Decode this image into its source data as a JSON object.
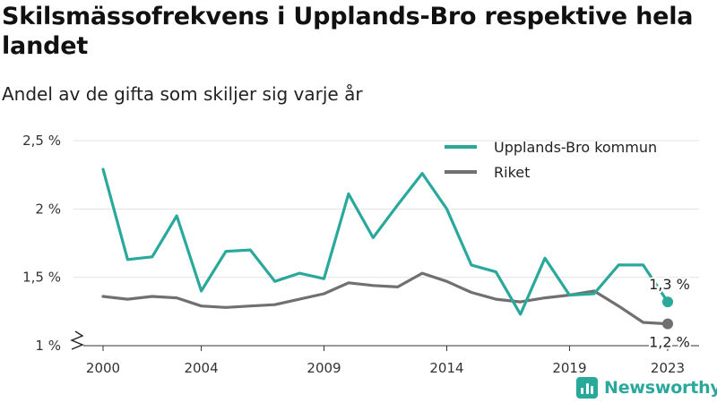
{
  "chart_data": {
    "type": "line",
    "title": "Skilsmässofrekvens i Upplands-Bro respektive hela landet",
    "subtitle": "Andel av de gifta som skiljer sig varje år",
    "x": [
      2000,
      2001,
      2002,
      2003,
      2004,
      2005,
      2006,
      2007,
      2008,
      2009,
      2010,
      2011,
      2012,
      2013,
      2014,
      2015,
      2016,
      2017,
      2018,
      2019,
      2020,
      2021,
      2022,
      2023
    ],
    "x_ticks": [
      2000,
      2004,
      2009,
      2014,
      2019,
      2023
    ],
    "y_ticks": [
      {
        "value": 1.0,
        "label": "1 %"
      },
      {
        "value": 1.5,
        "label": "1,5 %"
      },
      {
        "value": 2.0,
        "label": "2 %"
      },
      {
        "value": 2.5,
        "label": "2,5 %"
      }
    ],
    "ylim": [
      1.0,
      2.5
    ],
    "y_axis_break": true,
    "grid": true,
    "legend_position": "top-right",
    "series": [
      {
        "name": "Upplands-Bro kommun",
        "color": "#2aa89b",
        "values": [
          2.29,
          1.63,
          1.65,
          1.95,
          1.4,
          1.69,
          1.7,
          1.47,
          1.53,
          1.49,
          2.11,
          1.79,
          2.03,
          2.26,
          2.0,
          1.59,
          1.54,
          1.23,
          1.64,
          1.37,
          1.38,
          1.59,
          1.59,
          1.32
        ],
        "end_label": "1,3 %"
      },
      {
        "name": "Riket",
        "color": "#707070",
        "values": [
          1.36,
          1.34,
          1.36,
          1.35,
          1.29,
          1.28,
          1.29,
          1.3,
          1.34,
          1.38,
          1.46,
          1.44,
          1.43,
          1.53,
          1.47,
          1.39,
          1.34,
          1.32,
          1.35,
          1.37,
          1.4,
          1.29,
          1.17,
          1.16
        ],
        "end_label": "1,2 %"
      }
    ]
  },
  "brand": {
    "name": "Newsworthy",
    "color": "#2aa89b",
    "icon": "bar-chart-icon"
  }
}
